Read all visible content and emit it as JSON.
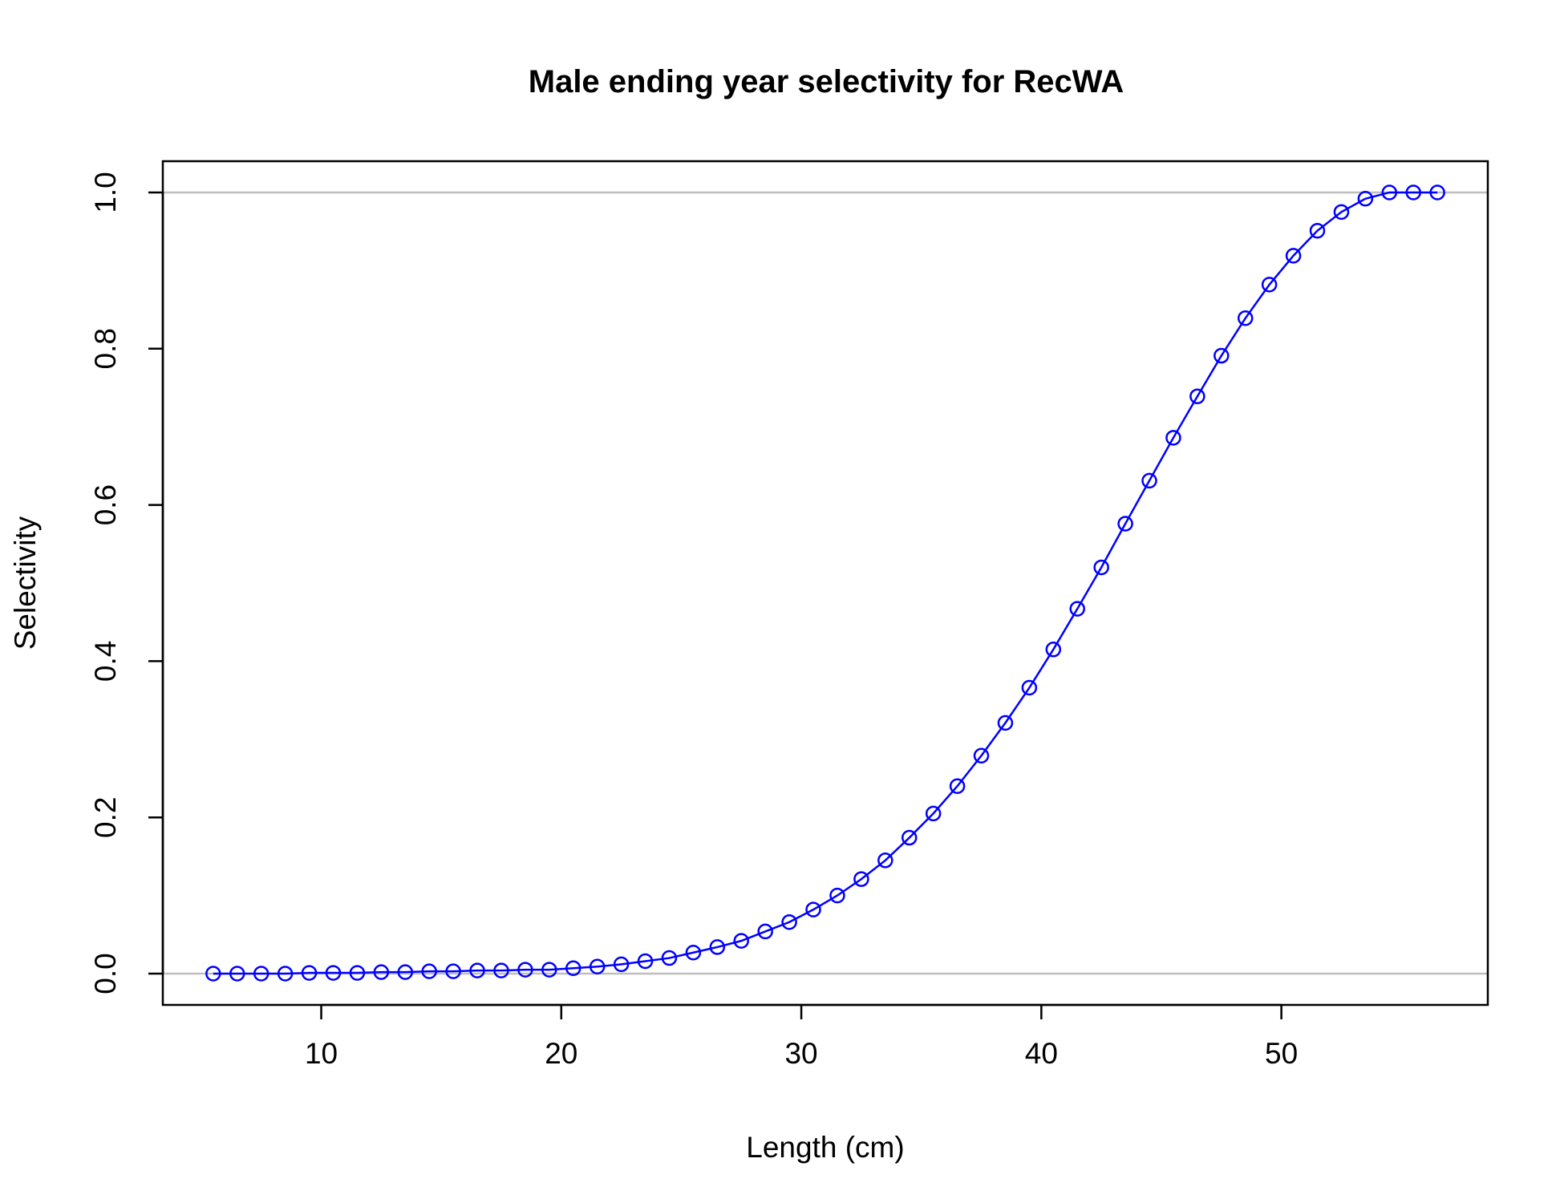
{
  "chart_data": {
    "type": "line",
    "title": "Male ending year selectivity for RecWA",
    "xlabel": "Length (cm)",
    "ylabel": "Selectivity",
    "xlim": [
      3.4,
      58.6
    ],
    "ylim": [
      -0.04,
      1.04
    ],
    "xticks": [
      10,
      20,
      30,
      40,
      50
    ],
    "yticks": [
      0.0,
      0.2,
      0.4,
      0.6,
      0.8,
      1.0
    ],
    "xtick_labels": [
      "10",
      "20",
      "30",
      "40",
      "50"
    ],
    "ytick_labels": [
      "0.0",
      "0.2",
      "0.4",
      "0.6",
      "0.8",
      "1.0"
    ],
    "reference_lines": [
      0,
      1
    ],
    "colors": {
      "series": "#0000ff",
      "reference": "#bebebe",
      "axis": "#000000"
    },
    "series": [
      {
        "name": "Male ending year selectivity",
        "x": [
          5.5,
          6.5,
          7.5,
          8.5,
          9.5,
          10.5,
          11.5,
          12.5,
          13.5,
          14.5,
          15.5,
          16.5,
          17.5,
          18.5,
          19.5,
          20.5,
          21.5,
          22.5,
          23.5,
          24.5,
          25.5,
          26.5,
          27.5,
          28.5,
          29.5,
          30.5,
          31.5,
          32.5,
          33.5,
          34.5,
          35.5,
          36.5,
          37.5,
          38.5,
          39.5,
          40.5,
          41.5,
          42.5,
          43.5,
          44.5,
          45.5,
          46.5,
          47.5,
          48.5,
          49.5,
          50.5,
          51.5,
          52.5,
          53.5,
          54.5,
          55.5,
          56.5
        ],
        "values": [
          0.0,
          0.0,
          0.0,
          0.0,
          0.001,
          0.001,
          0.001,
          0.002,
          0.002,
          0.003,
          0.003,
          0.004,
          0.004,
          0.005,
          0.005,
          0.007,
          0.009,
          0.012,
          0.016,
          0.02,
          0.027,
          0.034,
          0.042,
          0.054,
          0.066,
          0.082,
          0.1,
          0.121,
          0.145,
          0.174,
          0.205,
          0.24,
          0.279,
          0.321,
          0.366,
          0.415,
          0.467,
          0.52,
          0.576,
          0.631,
          0.686,
          0.739,
          0.791,
          0.839,
          0.882,
          0.919,
          0.951,
          0.975,
          0.992,
          1.0,
          1.0,
          1.0
        ]
      }
    ]
  }
}
